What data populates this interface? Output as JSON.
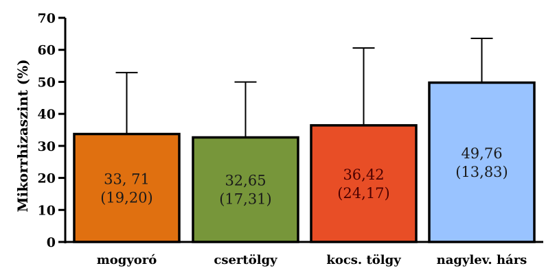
{
  "chart_data": {
    "type": "bar",
    "ylabel": "Mikorrhizaszint (%)",
    "xlabel": "",
    "ylim": [
      0,
      70
    ],
    "yticks": [
      0,
      10,
      20,
      30,
      40,
      50,
      60,
      70
    ],
    "grid": false,
    "categories": [
      "mogyoró",
      "csertölgy",
      "kocs. tölgy",
      "nagylev. hárs"
    ],
    "values": [
      33.71,
      32.65,
      36.42,
      49.76
    ],
    "errors": [
      19.2,
      17.31,
      24.17,
      13.83
    ],
    "data_labels": [
      {
        "line1": "33, 71",
        "line2": "(19,20)"
      },
      {
        "line1": "32,65",
        "line2": "(17,31)"
      },
      {
        "line1": "36,42",
        "line2": "(24,17)"
      },
      {
        "line1": "49,76",
        "line2": "(13,83)"
      }
    ],
    "colors": [
      "#E07010",
      "#77963A",
      "#E84E26",
      "#99C3FF"
    ],
    "label_colors": [
      "#1a1a1a",
      "#1a1a1a",
      "#4a0000",
      "#1a1a1a"
    ]
  }
}
